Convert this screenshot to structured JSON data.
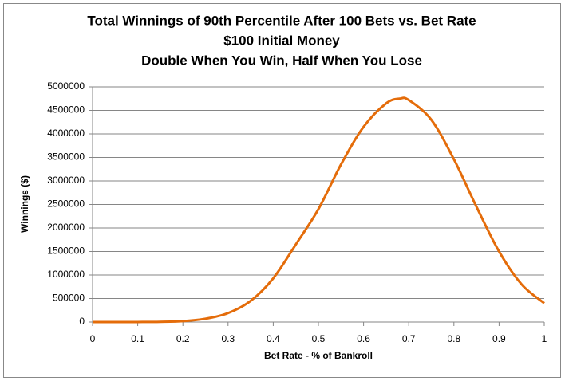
{
  "chart_data": {
    "type": "line",
    "title": [
      "Total Winnings of 90th Percentile After 100 Bets vs. Bet Rate",
      "$100 Initial Money",
      "Double When You Win, Half When You Lose"
    ],
    "x_label": "Bet Rate - % of Bankroll",
    "y_label": "Winnings ($)",
    "x": [
      0,
      0.05,
      0.1,
      0.15,
      0.2,
      0.25,
      0.3,
      0.35,
      0.4,
      0.45,
      0.5,
      0.55,
      0.6,
      0.65,
      0.68,
      0.7,
      0.75,
      0.8,
      0.85,
      0.9,
      0.95,
      1
    ],
    "series": [
      {
        "color": "#e46c0a",
        "values": [
          0,
          100,
          1000,
          5000,
          20000,
          70000,
          190000,
          450000,
          930000,
          1650000,
          2400000,
          3350000,
          4150000,
          4650000,
          4750000,
          4720000,
          4300000,
          3460000,
          2450000,
          1500000,
          800000,
          400000
        ]
      }
    ],
    "xlim": [
      0,
      1
    ],
    "xticks": [
      0,
      0.1,
      0.2,
      0.3,
      0.4,
      0.5,
      0.6,
      0.7,
      0.8,
      0.9,
      1
    ],
    "ylim": [
      0,
      5000000
    ],
    "yticks": [
      0,
      500000,
      1000000,
      1500000,
      2000000,
      2500000,
      3000000,
      3500000,
      4000000,
      4500000,
      5000000
    ],
    "grid": true
  }
}
